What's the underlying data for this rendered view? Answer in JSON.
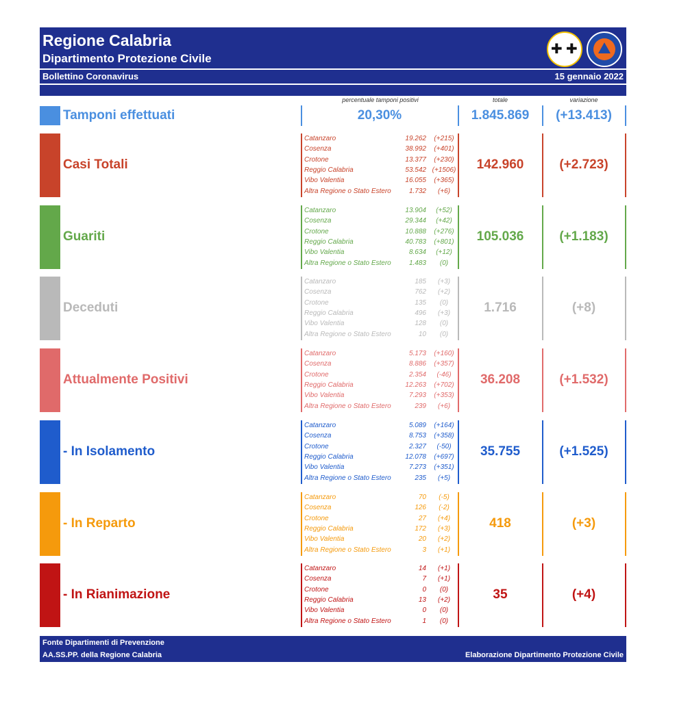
{
  "header": {
    "title": "Regione Calabria",
    "subtitle": "Dipartimento Protezione Civile",
    "bulletin": "Bollettino Coronavirus",
    "date": "15 gennaio 2022"
  },
  "columns": {
    "positive_rate": "percentuale tamponi positivi",
    "total": "totale",
    "change": "variazione"
  },
  "tamponi": {
    "label": "Tamponi effettuati",
    "positive_rate": "20,30%",
    "total": "1.845.869",
    "change": "(+13.413)",
    "color": "#4a8fe0"
  },
  "categories": [
    {
      "label": "Casi Totali",
      "total": "142.960",
      "change": "(+2.723)",
      "color": "#c8432a",
      "provinces": [
        {
          "name": "Catanzaro",
          "value": "19.262",
          "delta": "(+215)"
        },
        {
          "name": "Cosenza",
          "value": "38.992",
          "delta": "(+401)"
        },
        {
          "name": "Crotone",
          "value": "13.377",
          "delta": "(+230)"
        },
        {
          "name": "Reggio Calabria",
          "value": "53.542",
          "delta": "(+1506)"
        },
        {
          "name": "Vibo Valentia",
          "value": "16.055",
          "delta": "(+365)"
        },
        {
          "name": "Altra Regione o Stato Estero",
          "value": "1.732",
          "delta": "(+6)"
        }
      ]
    },
    {
      "label": "Guariti",
      "total": "105.036",
      "change": "(+1.183)",
      "color": "#63a84a",
      "provinces": [
        {
          "name": "Catanzaro",
          "value": "13.904",
          "delta": "(+52)"
        },
        {
          "name": "Cosenza",
          "value": "29.344",
          "delta": "(+42)"
        },
        {
          "name": "Crotone",
          "value": "10.888",
          "delta": "(+276)"
        },
        {
          "name": "Reggio Calabria",
          "value": "40.783",
          "delta": "(+801)"
        },
        {
          "name": "Vibo Valentia",
          "value": "8.634",
          "delta": "(+12)"
        },
        {
          "name": "Altra Regione o Stato Estero",
          "value": "1.483",
          "delta": "(0)"
        }
      ]
    },
    {
      "label": "Deceduti",
      "total": "1.716",
      "change": "(+8)",
      "color": "#b9b9b9",
      "provinces": [
        {
          "name": "Catanzaro",
          "value": "185",
          "delta": "(+3)"
        },
        {
          "name": "Cosenza",
          "value": "762",
          "delta": "(+2)"
        },
        {
          "name": "Crotone",
          "value": "135",
          "delta": "(0)"
        },
        {
          "name": "Reggio Calabria",
          "value": "496",
          "delta": "(+3)"
        },
        {
          "name": "Vibo Valentia",
          "value": "128",
          "delta": "(0)"
        },
        {
          "name": "Altra Regione o Stato Estero",
          "value": "10",
          "delta": "(0)"
        }
      ]
    },
    {
      "label": "Attualmente Positivi",
      "total": "36.208",
      "change": "(+1.532)",
      "color": "#e06a6a",
      "provinces": [
        {
          "name": "Catanzaro",
          "value": "5.173",
          "delta": "(+160)"
        },
        {
          "name": "Cosenza",
          "value": "8.886",
          "delta": "(+357)"
        },
        {
          "name": "Crotone",
          "value": "2.354",
          "delta": "(-46)"
        },
        {
          "name": "Reggio Calabria",
          "value": "12.263",
          "delta": "(+702)"
        },
        {
          "name": "Vibo Valentia",
          "value": "7.293",
          "delta": "(+353)"
        },
        {
          "name": "Altra Regione o Stato Estero",
          "value": "239",
          "delta": "(+6)"
        }
      ]
    },
    {
      "label": "- In Isolamento",
      "total": "35.755",
      "change": "(+1.525)",
      "color": "#1f5ccc",
      "provinces": [
        {
          "name": "Catanzaro",
          "value": "5.089",
          "delta": "(+164)"
        },
        {
          "name": "Cosenza",
          "value": "8.753",
          "delta": "(+358)"
        },
        {
          "name": "Crotone",
          "value": "2.327",
          "delta": "(-50)"
        },
        {
          "name": "Reggio Calabria",
          "value": "12.078",
          "delta": "(+697)"
        },
        {
          "name": "Vibo Valentia",
          "value": "7.273",
          "delta": "(+351)"
        },
        {
          "name": "Altra Regione o Stato Estero",
          "value": "235",
          "delta": "(+5)"
        }
      ]
    },
    {
      "label": "- In Reparto",
      "total": "418",
      "change": "(+3)",
      "color": "#f59a0c",
      "provinces": [
        {
          "name": "Catanzaro",
          "value": "70",
          "delta": "(-5)"
        },
        {
          "name": "Cosenza",
          "value": "126",
          "delta": "(-2)"
        },
        {
          "name": "Crotone",
          "value": "27",
          "delta": "(+4)"
        },
        {
          "name": "Reggio Calabria",
          "value": "172",
          "delta": "(+3)"
        },
        {
          "name": "Vibo Valentia",
          "value": "20",
          "delta": "(+2)"
        },
        {
          "name": "Altra Regione o Stato Estero",
          "value": "3",
          "delta": "(+1)"
        }
      ]
    },
    {
      "label": "- In Rianimazione",
      "total": "35",
      "change": "(+4)",
      "color": "#c01414",
      "provinces": [
        {
          "name": "Catanzaro",
          "value": "14",
          "delta": "(+1)"
        },
        {
          "name": "Cosenza",
          "value": "7",
          "delta": "(+1)"
        },
        {
          "name": "Crotone",
          "value": "0",
          "delta": "(0)"
        },
        {
          "name": "Reggio Calabria",
          "value": "13",
          "delta": "(+2)"
        },
        {
          "name": "Vibo Valentia",
          "value": "0",
          "delta": "(0)"
        },
        {
          "name": "Altra Regione o Stato Estero",
          "value": "1",
          "delta": "(0)"
        }
      ]
    }
  ],
  "footer": {
    "source_line1": "Fonte Dipartimenti di Prevenzione",
    "source_line2": "AA.SS.PP.  della Regione Calabria",
    "credit": "Elaborazione Dipartimento Protezione Civile"
  }
}
